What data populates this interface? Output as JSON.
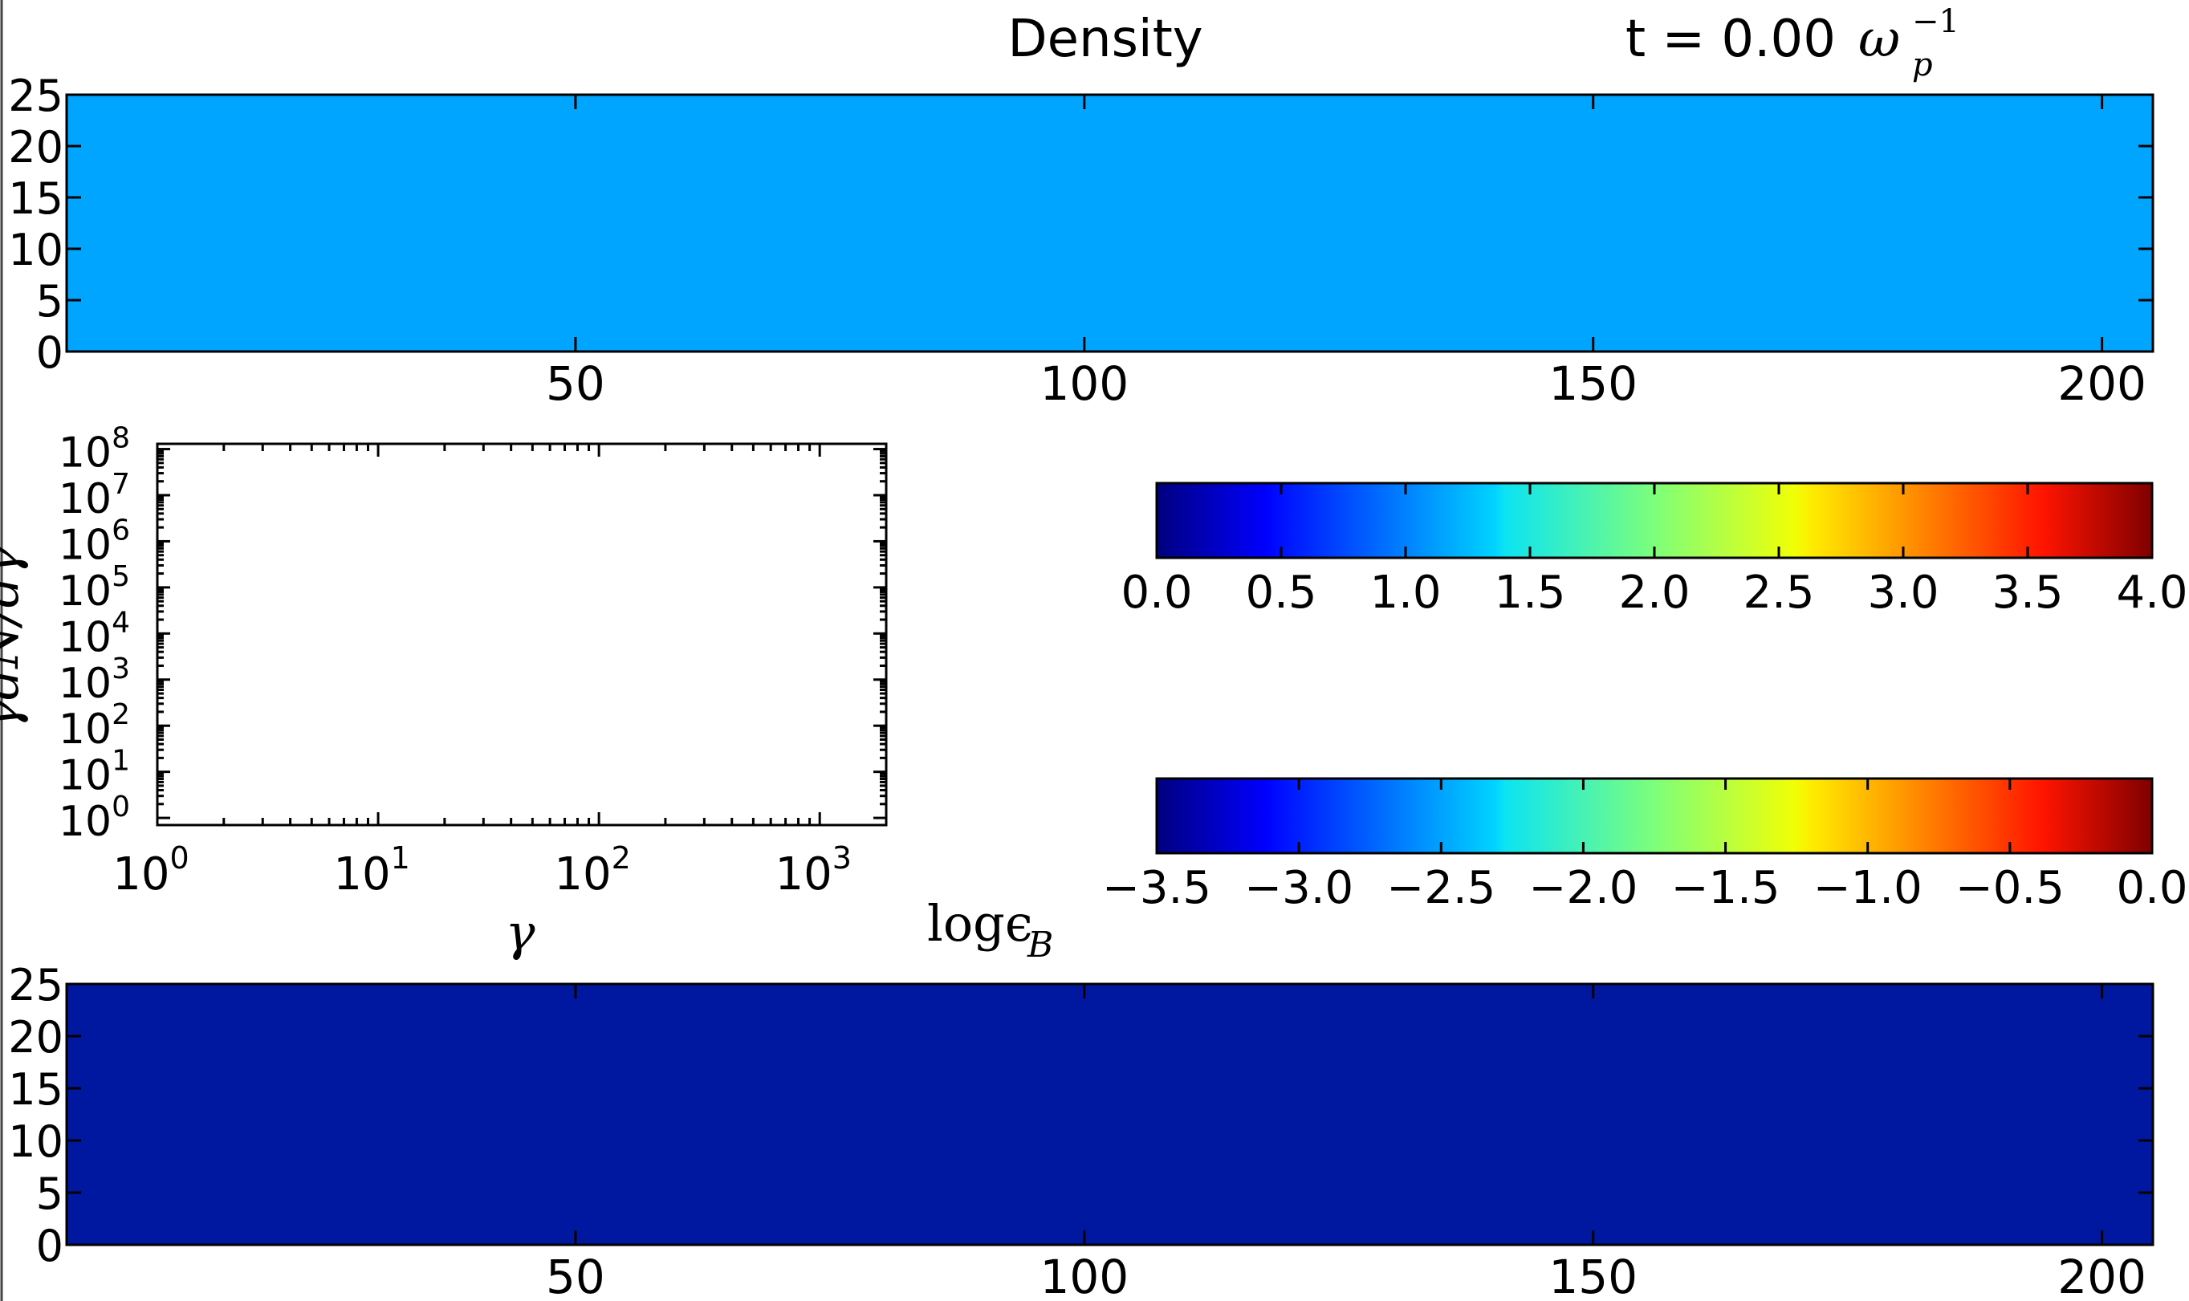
{
  "header": {
    "title": "Density",
    "time_prefix": "t = 0.00",
    "time_unit": "ω",
    "time_unit_sub": "p",
    "time_unit_sup": "−1"
  },
  "colors": {
    "density_fill": "#00a5ff",
    "field_fill": "#00189f",
    "axis": "#000000",
    "background": "#ffffff"
  },
  "chart_data": [
    {
      "id": "density",
      "type": "heatmap",
      "title": "Density",
      "x_ticks": [
        50,
        100,
        150,
        200
      ],
      "y_ticks": [
        0,
        5,
        10,
        15,
        20,
        25
      ],
      "xlim": [
        0,
        205
      ],
      "ylim": [
        0,
        25
      ],
      "value": 1.4,
      "colormap": "jet",
      "clim": [
        0.0,
        4.0
      ]
    },
    {
      "id": "spectrum",
      "type": "line",
      "xscale": "log",
      "yscale": "log",
      "x_ticks": [
        "10^0",
        "10^1",
        "10^2",
        "10^3"
      ],
      "y_ticks": [
        "10^0",
        "10^1",
        "10^2",
        "10^3",
        "10^4",
        "10^5",
        "10^6",
        "10^7",
        "10^8"
      ],
      "xlim": [
        1,
        2000
      ],
      "ylim": [
        0.7,
        130000000
      ],
      "xlabel": "γ",
      "ylabel": "γdN/dγ",
      "series": []
    },
    {
      "id": "density_colorbar",
      "type": "colorbar",
      "colormap": "jet",
      "range": [
        0.0,
        4.0
      ],
      "ticks": [
        "0.0",
        "0.5",
        "1.0",
        "1.5",
        "2.0",
        "2.5",
        "3.0",
        "3.5",
        "4.0"
      ]
    },
    {
      "id": "field_colorbar",
      "type": "colorbar",
      "colormap": "jet",
      "range": [
        -3.5,
        0.0
      ],
      "ticks": [
        "−3.5",
        "−3.0",
        "−2.5",
        "−2.0",
        "−1.5",
        "−1.0",
        "−0.5",
        "0.0"
      ],
      "label": "logϵ",
      "label_sub": "B"
    },
    {
      "id": "field",
      "type": "heatmap",
      "x_ticks": [
        50,
        100,
        150,
        200
      ],
      "y_ticks": [
        0,
        5,
        10,
        15,
        20,
        25
      ],
      "xlim": [
        0,
        205
      ],
      "ylim": [
        0,
        25
      ],
      "value": -3.4,
      "colormap": "jet",
      "clim": [
        -3.5,
        0.0
      ]
    }
  ]
}
